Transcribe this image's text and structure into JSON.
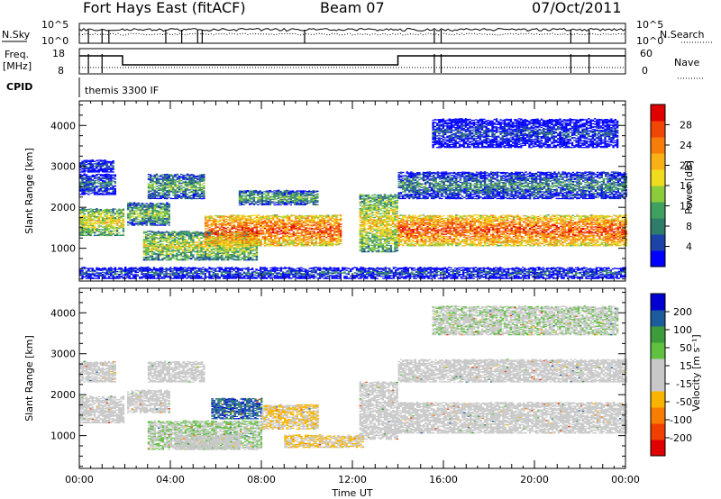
{
  "header": {
    "station": "Fort Hays East (fitACF)",
    "beam": "Beam 07",
    "date": "07/Oct/2011"
  },
  "noise_panel": {
    "left_label": "N.Sky",
    "right_label": "N.Search",
    "left_ticks": [
      "10^5",
      "10^0"
    ],
    "right_ticks": [
      "10^5",
      "10^0"
    ]
  },
  "freq_panel": {
    "left_label_1": "Freq.",
    "left_label_2": "[MHz]",
    "right_label": "Nave",
    "left_ticks": [
      "18",
      "8"
    ],
    "right_ticks": [
      "60",
      "0"
    ]
  },
  "cpid": {
    "label": "CPID",
    "mode": "themis 3300 IF"
  },
  "chart_data": [
    {
      "type": "heatmap",
      "name": "power",
      "ylabel": "Slant Range [km]",
      "y_ticks": [
        "4000",
        "3000",
        "2000",
        "1000"
      ],
      "ylim": [
        200,
        4600
      ],
      "xlim_hours": [
        0,
        24
      ],
      "colorbar_label": "Power [dB]",
      "colorbar_ticks": [
        "28",
        "24",
        "20",
        "16",
        "12",
        "8",
        "4"
      ],
      "colorbar_range": [
        0,
        30
      ],
      "colors": [
        "#0000ff",
        "#1c44a8",
        "#2e7d6b",
        "#40a060",
        "#8ccc3c",
        "#f0dc1e",
        "#f8b014",
        "#f87c0a",
        "#f04606",
        "#e00000"
      ],
      "bands": [
        {
          "t0": 0.0,
          "t1": 1.9,
          "r0": 1300,
          "r1": 1950,
          "level": 0.6
        },
        {
          "t0": 0.0,
          "t1": 1.6,
          "r0": 2300,
          "r1": 2800,
          "level": 0.25
        },
        {
          "t0": 0.0,
          "t1": 1.5,
          "r0": 2850,
          "r1": 3150,
          "level": 0.15
        },
        {
          "t0": 2.1,
          "t1": 3.9,
          "r0": 1550,
          "r1": 2100,
          "level": 0.45
        },
        {
          "t0": 2.8,
          "t1": 7.8,
          "r0": 700,
          "r1": 1400,
          "level": 0.55
        },
        {
          "t0": 3.0,
          "t1": 5.5,
          "r0": 2200,
          "r1": 2800,
          "level": 0.4
        },
        {
          "t0": 5.5,
          "t1": 11.5,
          "r0": 1050,
          "r1": 1800,
          "level": 0.85
        },
        {
          "t0": 7.0,
          "t1": 10.5,
          "r0": 2050,
          "r1": 2400,
          "level": 0.4
        },
        {
          "t0": 12.3,
          "t1": 14.0,
          "r0": 900,
          "r1": 2300,
          "level": 0.6
        },
        {
          "t0": 14.0,
          "t1": 24.0,
          "r0": 1050,
          "r1": 1800,
          "level": 0.85
        },
        {
          "t0": 14.0,
          "t1": 24.0,
          "r0": 2200,
          "r1": 2850,
          "level": 0.3
        },
        {
          "t0": 15.5,
          "t1": 23.6,
          "r0": 3450,
          "r1": 4150,
          "level": 0.15
        },
        {
          "t0": 0.0,
          "t1": 24.0,
          "r0": 250,
          "r1": 520,
          "level": 0.2
        }
      ]
    },
    {
      "type": "heatmap",
      "name": "velocity",
      "ylabel": "Slant Range [km]",
      "y_ticks": [
        "4000",
        "3000",
        "2000",
        "1000"
      ],
      "ylim": [
        200,
        4600
      ],
      "xlim_hours": [
        0,
        24
      ],
      "xlabel": "Time UT",
      "x_ticks": [
        "00:00",
        "04:00",
        "08:00",
        "12:00",
        "16:00",
        "20:00",
        "00:00"
      ],
      "colorbar_label": "Velocity [m s⁻¹]",
      "colorbar_ticks": [
        "200",
        "100",
        "50",
        "15",
        "-15",
        "-50",
        "-100",
        "-200"
      ],
      "colorbar_range": [
        -250,
        250
      ],
      "colors": [
        "#e00000",
        "#f04000",
        "#f87c00",
        "#f8b400",
        "#c8c8c8",
        "#c8c8c8",
        "#60c040",
        "#3c9c3c",
        "#1c5c9c",
        "#0000d0"
      ],
      "bands": [
        {
          "t0": 0.0,
          "t1": 1.9,
          "r0": 1300,
          "r1": 1950,
          "vel": 0
        },
        {
          "t0": 0.0,
          "t1": 1.6,
          "r0": 2300,
          "r1": 2800,
          "vel": 0
        },
        {
          "t0": 2.1,
          "t1": 3.9,
          "r0": 1550,
          "r1": 2100,
          "vel": 0
        },
        {
          "t0": 3.0,
          "t1": 5.5,
          "r0": 2300,
          "r1": 2800,
          "vel": 0
        },
        {
          "t0": 3.0,
          "t1": 8.0,
          "r0": 650,
          "r1": 1350,
          "vel": 40
        },
        {
          "t0": 4.2,
          "t1": 7.0,
          "r0": 650,
          "r1": 1000,
          "vel": 0
        },
        {
          "t0": 5.8,
          "t1": 8.0,
          "r0": 1400,
          "r1": 1900,
          "vel": 180
        },
        {
          "t0": 8.0,
          "t1": 10.5,
          "r0": 1150,
          "r1": 1750,
          "vel": -50
        },
        {
          "t0": 9.0,
          "t1": 12.5,
          "r0": 700,
          "r1": 1000,
          "vel": -50
        },
        {
          "t0": 12.3,
          "t1": 14.0,
          "r0": 900,
          "r1": 2300,
          "vel": 0
        },
        {
          "t0": 14.0,
          "t1": 24.0,
          "r0": 1050,
          "r1": 1800,
          "vel": 0
        },
        {
          "t0": 14.0,
          "t1": 24.0,
          "r0": 2300,
          "r1": 2850,
          "vel": 0
        },
        {
          "t0": 15.5,
          "t1": 23.6,
          "r0": 3450,
          "r1": 4150,
          "vel": 30
        }
      ]
    }
  ]
}
